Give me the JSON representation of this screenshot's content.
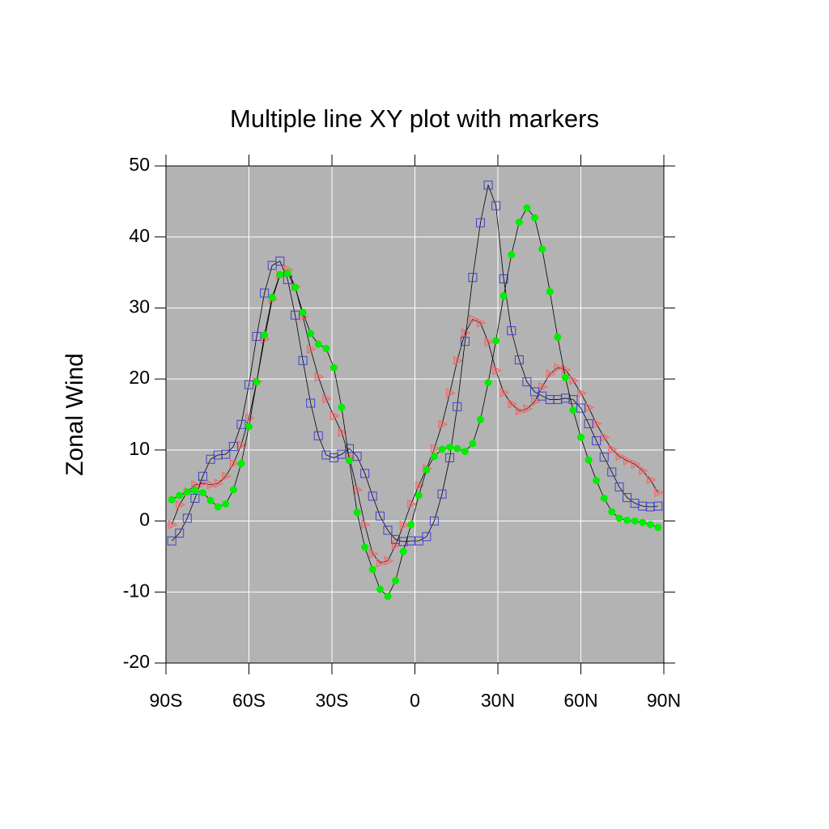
{
  "chart_data": {
    "type": "line",
    "title": "Multiple line XY plot with markers",
    "y_label": "Zonal Wind",
    "x": [
      -87.9,
      -85.1,
      -82.3,
      -79.5,
      -76.7,
      -73.9,
      -71.2,
      -68.4,
      -65.6,
      -62.8,
      -60.0,
      -57.2,
      -54.4,
      -51.6,
      -48.8,
      -46.0,
      -43.3,
      -40.5,
      -37.7,
      -34.9,
      -32.1,
      -29.3,
      -26.5,
      -23.7,
      -20.9,
      -18.1,
      -15.3,
      -12.6,
      -9.8,
      -7.0,
      -4.2,
      -1.4,
      1.4,
      4.2,
      7.0,
      9.8,
      12.6,
      15.3,
      18.1,
      20.9,
      23.7,
      26.5,
      29.3,
      32.1,
      34.9,
      37.7,
      40.5,
      43.3,
      46.0,
      48.8,
      51.6,
      54.4,
      57.2,
      60.0,
      62.8,
      65.6,
      68.4,
      71.2,
      73.9,
      76.7,
      79.5,
      82.3,
      85.1,
      87.9
    ],
    "series": [
      {
        "color": "#ff6060",
        "marker": "triangle",
        "values": [
          -0.5,
          2.3,
          4.1,
          5.1,
          5.3,
          5.1,
          5.3,
          6.3,
          8.1,
          10.7,
          14.5,
          19.6,
          25.6,
          31.2,
          34.6,
          35.4,
          33.0,
          28.8,
          24.2,
          20.3,
          17.2,
          14.8,
          12.5,
          9.0,
          4.4,
          -0.5,
          -4.6,
          -5.9,
          -5.6,
          -3.4,
          -0.6,
          2.4,
          5.0,
          7.4,
          10.2,
          13.6,
          18.0,
          22.6,
          26.5,
          28.4,
          27.9,
          25.2,
          21.2,
          18.1,
          16.5,
          15.5,
          15.8,
          16.8,
          18.9,
          20.7,
          21.6,
          21.3,
          19.8,
          18.0,
          16.0,
          13.7,
          11.8,
          10.1,
          9.1,
          8.5,
          8.0,
          7.1,
          5.8,
          4.0
        ]
      },
      {
        "color": "#4040d0",
        "marker": "square",
        "values": [
          -2.8,
          -1.7,
          0.4,
          3.2,
          6.3,
          8.7,
          9.3,
          9.4,
          10.5,
          13.6,
          19.2,
          26.0,
          32.1,
          36.0,
          36.6,
          34.0,
          29.0,
          22.6,
          16.6,
          12.0,
          9.3,
          8.9,
          9.4,
          10.2,
          9.1,
          6.7,
          3.5,
          0.7,
          -1.3,
          -2.6,
          -2.9,
          -2.8,
          -2.8,
          -2.2,
          0.0,
          3.8,
          8.9,
          16.1,
          25.3,
          34.3,
          42.0,
          47.3,
          44.4,
          34.1,
          26.8,
          22.7,
          19.6,
          18.2,
          17.6,
          17.1,
          17.1,
          17.3,
          17.1,
          15.9,
          13.7,
          11.3,
          9.0,
          6.9,
          4.8,
          3.3,
          2.5,
          2.1,
          2.0,
          2.1
        ]
      },
      {
        "color": "#00ee00",
        "marker": "circle",
        "values": [
          3.0,
          3.6,
          4.1,
          4.3,
          4.0,
          2.9,
          2.0,
          2.4,
          4.4,
          8.1,
          13.3,
          19.6,
          26.2,
          31.5,
          34.7,
          34.9,
          32.9,
          29.4,
          26.4,
          24.9,
          24.3,
          21.6,
          16.0,
          8.5,
          1.2,
          -3.7,
          -6.8,
          -9.6,
          -10.6,
          -8.4,
          -4.3,
          -0.5,
          3.6,
          7.2,
          9.1,
          10.1,
          10.4,
          10.2,
          9.8,
          10.9,
          14.3,
          19.5,
          25.4,
          31.7,
          37.5,
          42.1,
          44.1,
          42.7,
          38.3,
          32.3,
          25.9,
          20.2,
          15.6,
          11.8,
          8.6,
          5.7,
          3.2,
          1.3,
          0.4,
          0.1,
          0.0,
          -0.2,
          -0.5,
          -0.9
        ]
      }
    ],
    "xlim": [
      -90,
      90
    ],
    "ylim": [
      -20,
      50
    ],
    "xticks": [
      {
        "value": -90,
        "label": "90S"
      },
      {
        "value": -60,
        "label": "60S"
      },
      {
        "value": -30,
        "label": "30S"
      },
      0,
      {
        "value": 30,
        "label": "30N"
      },
      {
        "value": 60,
        "label": "60N"
      },
      {
        "value": 90,
        "label": "90N"
      }
    ],
    "yticks": [
      -20,
      -10,
      0,
      10,
      20,
      30,
      40,
      50
    ],
    "grid": true,
    "background": "#b3b3b3",
    "line_color": "#000000"
  }
}
